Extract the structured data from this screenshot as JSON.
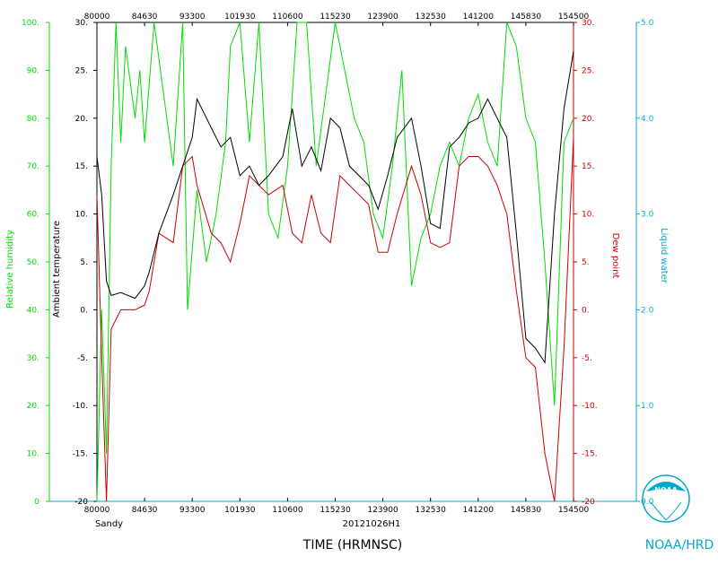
{
  "chart_data": {
    "type": "line",
    "colors": {
      "ambient_temperature": "#000000",
      "dew_point": "#cc0000",
      "relative_humidity": "#00dd00",
      "liquid_water": "#00aacc"
    },
    "time_ticks": [
      "80000",
      "84630",
      "93300",
      "101930",
      "110600",
      "115230",
      "123900",
      "132530",
      "141200",
      "145830",
      "154500"
    ],
    "axes": {
      "relative_humidity": {
        "label": "Relative humidity",
        "range": [
          0,
          100
        ],
        "ticks": [
          "0",
          "10.",
          "20.",
          "30.",
          "40.",
          "50.",
          "60.",
          "70.",
          "80.",
          "90.",
          "100."
        ]
      },
      "ambient_temperature": {
        "label": "Ambient temperature",
        "range": [
          -20,
          30
        ],
        "ticks": [
          "-20",
          "-15.",
          "-10.",
          "-5.",
          "0.",
          "5.",
          "10.",
          "15.",
          "20.",
          "25.",
          "30."
        ]
      },
      "dew_point": {
        "label": "Dew point",
        "range": [
          -20,
          30
        ],
        "ticks": [
          "-20",
          "-15.",
          "-10.",
          "-5.",
          "0.",
          "5.",
          "10.",
          "15.",
          "20.",
          "25.",
          "30."
        ]
      },
      "liquid_water": {
        "label": "Liquid water",
        "range": [
          0,
          5
        ],
        "ticks": [
          "0.0",
          "1.0",
          "2.0",
          "3.0",
          "4.0",
          "5.0"
        ]
      }
    },
    "series": [
      {
        "key": "ambient_temperature",
        "x": [
          0.0,
          0.01,
          0.02,
          0.03,
          0.05,
          0.08,
          0.1,
          0.11,
          0.13,
          0.16,
          0.18,
          0.2,
          0.21,
          0.24,
          0.26,
          0.28,
          0.3,
          0.32,
          0.34,
          0.36,
          0.39,
          0.41,
          0.43,
          0.45,
          0.47,
          0.49,
          0.51,
          0.53,
          0.55,
          0.57,
          0.59,
          0.61,
          0.63,
          0.66,
          0.68,
          0.7,
          0.72,
          0.74,
          0.76,
          0.78,
          0.8,
          0.82,
          0.84,
          0.86,
          0.88,
          0.9,
          0.92,
          0.94,
          0.96,
          0.98,
          1.0
        ],
        "y": [
          16,
          12,
          3,
          1.5,
          1.8,
          1.2,
          2.5,
          4,
          8,
          12,
          15,
          18,
          22,
          19,
          17,
          18,
          14,
          15,
          13,
          14,
          16,
          21,
          15,
          17,
          14.5,
          20,
          19,
          15,
          14,
          13,
          10.5,
          14,
          18,
          20,
          15,
          9,
          8.5,
          17,
          18,
          19.5,
          20,
          22,
          20,
          18,
          8,
          -3,
          -4,
          -5.5,
          10,
          21,
          27
        ]
      },
      {
        "key": "dew_point",
        "x": [
          0.0,
          0.01,
          0.02,
          0.03,
          0.05,
          0.08,
          0.1,
          0.11,
          0.13,
          0.16,
          0.18,
          0.2,
          0.21,
          0.24,
          0.26,
          0.28,
          0.3,
          0.32,
          0.34,
          0.36,
          0.39,
          0.41,
          0.43,
          0.45,
          0.47,
          0.49,
          0.51,
          0.53,
          0.55,
          0.57,
          0.59,
          0.61,
          0.63,
          0.66,
          0.68,
          0.7,
          0.72,
          0.74,
          0.76,
          0.78,
          0.8,
          0.82,
          0.84,
          0.86,
          0.88,
          0.9,
          0.92,
          0.94,
          0.96,
          0.98,
          1.0
        ],
        "y": [
          12,
          -5,
          -20,
          -2,
          0,
          0,
          0.5,
          2,
          8,
          7,
          15,
          16,
          13,
          8,
          7,
          5,
          9,
          14,
          13,
          12,
          13,
          8,
          7,
          12,
          8,
          7,
          14,
          13,
          12,
          11,
          6,
          6,
          10,
          15,
          12,
          7,
          6.5,
          7,
          15,
          16,
          16,
          15,
          13,
          10,
          2,
          -5,
          -6,
          -15,
          -20,
          -4,
          18
        ]
      },
      {
        "key": "relative_humidity",
        "x": [
          0.0,
          0.01,
          0.02,
          0.03,
          0.04,
          0.05,
          0.06,
          0.08,
          0.09,
          0.1,
          0.12,
          0.14,
          0.16,
          0.18,
          0.19,
          0.21,
          0.23,
          0.25,
          0.27,
          0.28,
          0.3,
          0.32,
          0.34,
          0.36,
          0.38,
          0.4,
          0.42,
          0.44,
          0.46,
          0.48,
          0.5,
          0.52,
          0.54,
          0.56,
          0.58,
          0.6,
          0.62,
          0.64,
          0.66,
          0.68,
          0.7,
          0.72,
          0.74,
          0.76,
          0.78,
          0.8,
          0.82,
          0.84,
          0.86,
          0.88,
          0.9,
          0.92,
          0.94,
          0.96,
          0.98,
          1.0
        ],
        "y": [
          0,
          40,
          10,
          70,
          100,
          75,
          95,
          80,
          90,
          75,
          100,
          85,
          70,
          100,
          40,
          65,
          50,
          60,
          75,
          95,
          100,
          75,
          100,
          60,
          55,
          70,
          100,
          100,
          70,
          85,
          100,
          90,
          80,
          75,
          60,
          55,
          70,
          90,
          45,
          55,
          60,
          70,
          75,
          70,
          80,
          85,
          75,
          70,
          100,
          95,
          80,
          75,
          50,
          20,
          75,
          80
        ]
      }
    ],
    "bottom_left_label": "Sandy",
    "bottom_center_label": "20121026H1",
    "x_axis_title": "TIME (HRMNSC)",
    "logo_text": "NOAA",
    "agency_label": "NOAA/HRD"
  }
}
